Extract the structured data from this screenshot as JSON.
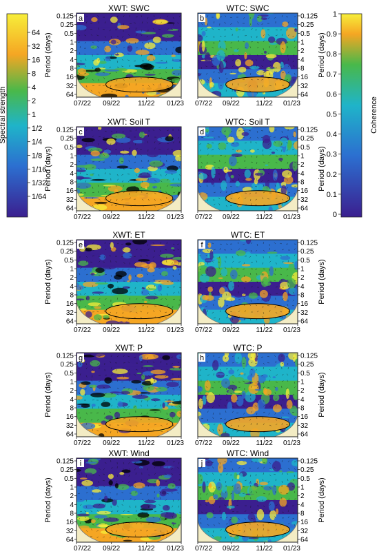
{
  "left_colorbar": {
    "label": "Spectral strength",
    "ticks": [
      "64",
      "32",
      "16",
      "8",
      "4",
      "2",
      "1",
      "1/2",
      "1/4",
      "1/8",
      "1/16",
      "1/32",
      "1/64"
    ]
  },
  "right_colorbar": {
    "label": "Coherence",
    "ticks": [
      "1",
      "0.9",
      "0.8",
      "0.7",
      "0.6",
      "0.5",
      "0.4",
      "0.3",
      "0.2",
      "0.1",
      "0"
    ]
  },
  "colors": {
    "low": "#3b1f8f",
    "mid_blue": "#2c6fd0",
    "cyan": "#1fb4c9",
    "green": "#49b84a",
    "orange": "#f5a623",
    "yellow": "#f7ee3a",
    "coi_shade": "#f3ecc4"
  },
  "axes": {
    "ylabel": "Period (days)",
    "yticks": [
      "0.125",
      "0.25",
      "0.5",
      "1",
      "2",
      "4",
      "8",
      "16",
      "32",
      "64"
    ],
    "xticks": [
      "07/22",
      "09/22",
      "11/22",
      "01/23"
    ]
  },
  "chart_data": [
    {
      "type": "heatmap",
      "title": "XWT: SWC",
      "letter": "a",
      "colorbar": "Spectral strength"
    },
    {
      "type": "heatmap",
      "title": "WTC: SWC",
      "letter": "b",
      "colorbar": "Coherence"
    },
    {
      "type": "heatmap",
      "title": "XWT: Soil T",
      "letter": "c",
      "colorbar": "Spectral strength"
    },
    {
      "type": "heatmap",
      "title": "WTC: Soil T",
      "letter": "d",
      "colorbar": "Coherence"
    },
    {
      "type": "heatmap",
      "title": "XWT: ET",
      "letter": "e",
      "colorbar": "Spectral strength"
    },
    {
      "type": "heatmap",
      "title": "WTC: ET",
      "letter": "f",
      "colorbar": "Coherence"
    },
    {
      "type": "heatmap",
      "title": "XWT: P",
      "letter": "g",
      "colorbar": "Spectral strength"
    },
    {
      "type": "heatmap",
      "title": "WTC: P",
      "letter": "h",
      "colorbar": "Coherence"
    },
    {
      "type": "heatmap",
      "title": "XWT: Wind",
      "letter": "i",
      "colorbar": "Spectral strength"
    },
    {
      "type": "heatmap",
      "title": "WTC: Wind",
      "letter": "j",
      "colorbar": "Coherence"
    }
  ]
}
